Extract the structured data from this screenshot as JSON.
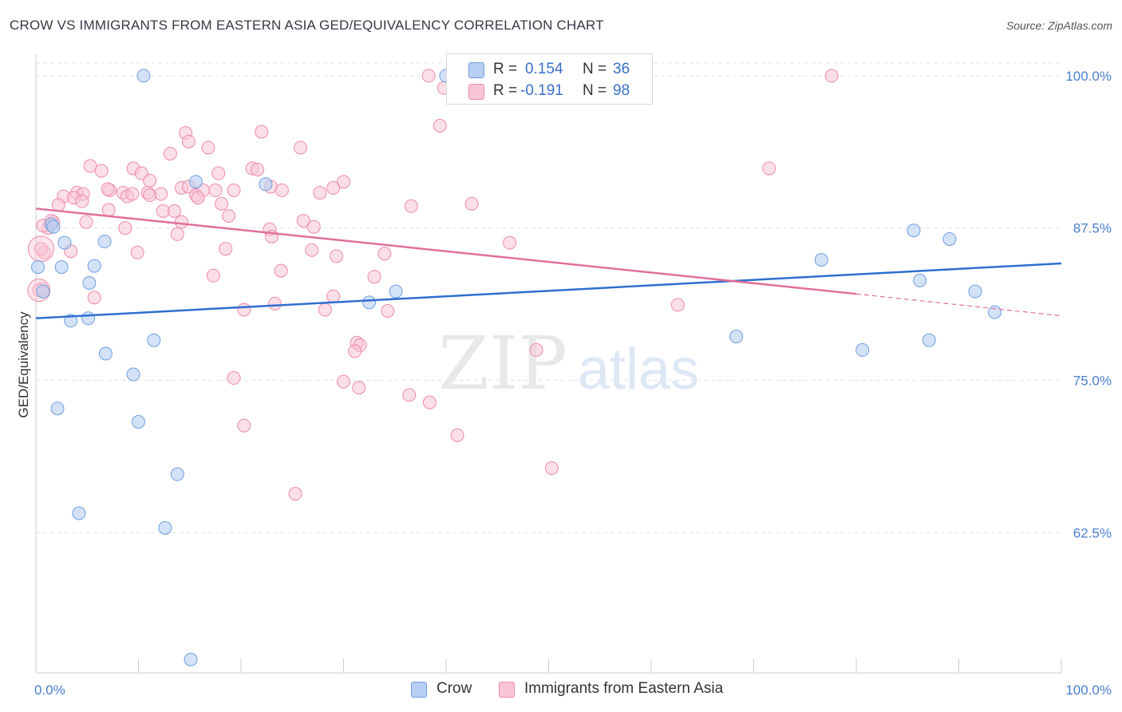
{
  "header": {
    "title": "CROW VS IMMIGRANTS FROM EASTERN ASIA GED/EQUIVALENCY CORRELATION CHART",
    "source": "Source: ZipAtlas.com"
  },
  "watermark": {
    "zip": "ZIP",
    "atlas": "atlas"
  },
  "legend": {
    "rows": [
      {
        "r_label": "R =",
        "r_value": "0.154",
        "n_label": "N =",
        "n_value": "36"
      },
      {
        "r_label": "R =",
        "r_value": "-0.191",
        "n_label": "N =",
        "n_value": "98"
      }
    ]
  },
  "bottom_legend": {
    "crow": "Crow",
    "immigrants": "Immigrants from Eastern Asia"
  },
  "chart_data": {
    "type": "scatter",
    "title": "CROW VS IMMIGRANTS FROM EASTERN ASIA GED/EQUIVALENCY CORRELATION CHART",
    "ylabel": "GED/Equivalency",
    "xlabel": "",
    "xlim": [
      0,
      100
    ],
    "ylim": [
      51,
      101.5
    ],
    "x_tick_labels": [
      "0.0%",
      "100.0%"
    ],
    "y_ticks": [
      62.5,
      75.0,
      87.5,
      100.0
    ],
    "y_tick_labels": [
      "62.5%",
      "75.0%",
      "87.5%",
      "100.0%"
    ],
    "grid": true,
    "colors": {
      "crow": "#6f9fe0",
      "crow_fill": "#b7cff2",
      "crow_line": "#2e6fcf",
      "imm": "#ee8aaa",
      "imm_fill": "#f8c5d5",
      "imm_line": "#e0709a",
      "axis_text": "#4a7fd0"
    },
    "series": [
      {
        "name": "Crow",
        "trend": {
          "x0": 0,
          "y0": 80.1,
          "x1": 100,
          "y1": 84.6
        },
        "points": [
          [
            10.5,
            100.0
          ],
          [
            40.0,
            100.0
          ],
          [
            56.0,
            100.0
          ],
          [
            0.7,
            82.3
          ],
          [
            1.5,
            87.8
          ],
          [
            1.7,
            87.6
          ],
          [
            2.8,
            86.3
          ],
          [
            2.5,
            84.3
          ],
          [
            5.7,
            84.4
          ],
          [
            5.2,
            83.0
          ],
          [
            3.4,
            79.9
          ],
          [
            5.1,
            80.1
          ],
          [
            6.7,
            86.4
          ],
          [
            6.8,
            77.2
          ],
          [
            9.5,
            75.5
          ],
          [
            11.5,
            78.3
          ],
          [
            10.0,
            71.6
          ],
          [
            2.1,
            72.7
          ],
          [
            4.2,
            64.1
          ],
          [
            13.8,
            67.3
          ],
          [
            12.6,
            62.9
          ],
          [
            15.1,
            52.1
          ],
          [
            15.6,
            91.3
          ],
          [
            22.4,
            91.1
          ],
          [
            32.5,
            81.4
          ],
          [
            35.1,
            82.3
          ],
          [
            85.6,
            87.3
          ],
          [
            89.1,
            86.6
          ],
          [
            76.6,
            84.9
          ],
          [
            86.2,
            83.2
          ],
          [
            91.6,
            82.3
          ],
          [
            93.5,
            80.6
          ],
          [
            68.3,
            78.6
          ],
          [
            80.6,
            77.5
          ],
          [
            87.1,
            78.3
          ],
          [
            0.2,
            84.3
          ]
        ]
      },
      {
        "name": "Immigrants from Eastern Asia",
        "trend": {
          "x0": 0,
          "y0": 89.1,
          "x1": 80,
          "y1": 82.1,
          "dash_to_x": 100,
          "dash_to_y": 80.3
        },
        "points": [
          [
            38.3,
            100.0
          ],
          [
            39.8,
            99.0
          ],
          [
            77.6,
            100.0
          ],
          [
            39.4,
            95.9
          ],
          [
            14.6,
            95.3
          ],
          [
            14.9,
            94.6
          ],
          [
            22.0,
            95.4
          ],
          [
            16.8,
            94.1
          ],
          [
            25.8,
            94.1
          ],
          [
            13.1,
            93.6
          ],
          [
            5.3,
            92.6
          ],
          [
            6.4,
            92.2
          ],
          [
            9.5,
            92.4
          ],
          [
            10.3,
            92.0
          ],
          [
            11.1,
            91.4
          ],
          [
            14.2,
            90.8
          ],
          [
            17.8,
            92.0
          ],
          [
            21.1,
            92.4
          ],
          [
            21.6,
            92.3
          ],
          [
            30.0,
            91.3
          ],
          [
            7.2,
            90.6
          ],
          [
            8.5,
            90.4
          ],
          [
            10.9,
            90.4
          ],
          [
            12.2,
            90.3
          ],
          [
            14.9,
            90.9
          ],
          [
            15.6,
            90.2
          ],
          [
            16.3,
            90.6
          ],
          [
            17.5,
            90.6
          ],
          [
            19.3,
            90.6
          ],
          [
            22.9,
            90.9
          ],
          [
            24.0,
            90.6
          ],
          [
            27.7,
            90.4
          ],
          [
            29.0,
            90.8
          ],
          [
            4.0,
            90.4
          ],
          [
            4.6,
            90.3
          ],
          [
            2.7,
            90.1
          ],
          [
            3.7,
            90.0
          ],
          [
            8.9,
            90.1
          ],
          [
            11.1,
            90.2
          ],
          [
            15.8,
            90.0
          ],
          [
            2.2,
            89.4
          ],
          [
            4.5,
            89.7
          ],
          [
            7.1,
            89.0
          ],
          [
            18.1,
            89.5
          ],
          [
            36.6,
            89.3
          ],
          [
            42.5,
            89.5
          ],
          [
            71.5,
            92.4
          ],
          [
            12.4,
            88.9
          ],
          [
            18.8,
            88.5
          ],
          [
            26.1,
            88.1
          ],
          [
            4.9,
            88.0
          ],
          [
            8.7,
            87.5
          ],
          [
            14.2,
            88.0
          ],
          [
            22.8,
            87.4
          ],
          [
            1.2,
            87.5
          ],
          [
            1.7,
            88.0
          ],
          [
            13.8,
            87.0
          ],
          [
            27.1,
            87.6
          ],
          [
            23.0,
            86.8
          ],
          [
            3.4,
            85.6
          ],
          [
            9.9,
            85.5
          ],
          [
            18.5,
            85.8
          ],
          [
            26.9,
            85.7
          ],
          [
            29.3,
            85.2
          ],
          [
            34.0,
            85.4
          ],
          [
            46.2,
            86.3
          ],
          [
            0.8,
            85.5
          ],
          [
            23.9,
            84.0
          ],
          [
            17.3,
            83.6
          ],
          [
            33.0,
            83.5
          ],
          [
            0.6,
            82.5
          ],
          [
            5.7,
            81.8
          ],
          [
            29.0,
            81.9
          ],
          [
            23.3,
            81.3
          ],
          [
            20.3,
            80.8
          ],
          [
            28.2,
            80.8
          ],
          [
            34.3,
            80.7
          ],
          [
            62.6,
            81.2
          ],
          [
            31.3,
            78.1
          ],
          [
            31.6,
            77.9
          ],
          [
            31.1,
            77.4
          ],
          [
            48.8,
            77.5
          ],
          [
            19.3,
            75.2
          ],
          [
            30.0,
            74.9
          ],
          [
            31.5,
            74.4
          ],
          [
            36.4,
            73.8
          ],
          [
            38.4,
            73.2
          ],
          [
            20.3,
            71.3
          ],
          [
            41.1,
            70.5
          ],
          [
            50.3,
            67.8
          ],
          [
            25.3,
            65.7
          ],
          [
            0.5,
            85.8
          ],
          [
            0.7,
            87.7
          ],
          [
            1.5,
            88.1
          ],
          [
            0.3,
            82.4
          ],
          [
            7.0,
            90.7
          ],
          [
            9.4,
            90.3
          ],
          [
            13.5,
            88.9
          ]
        ]
      }
    ]
  }
}
